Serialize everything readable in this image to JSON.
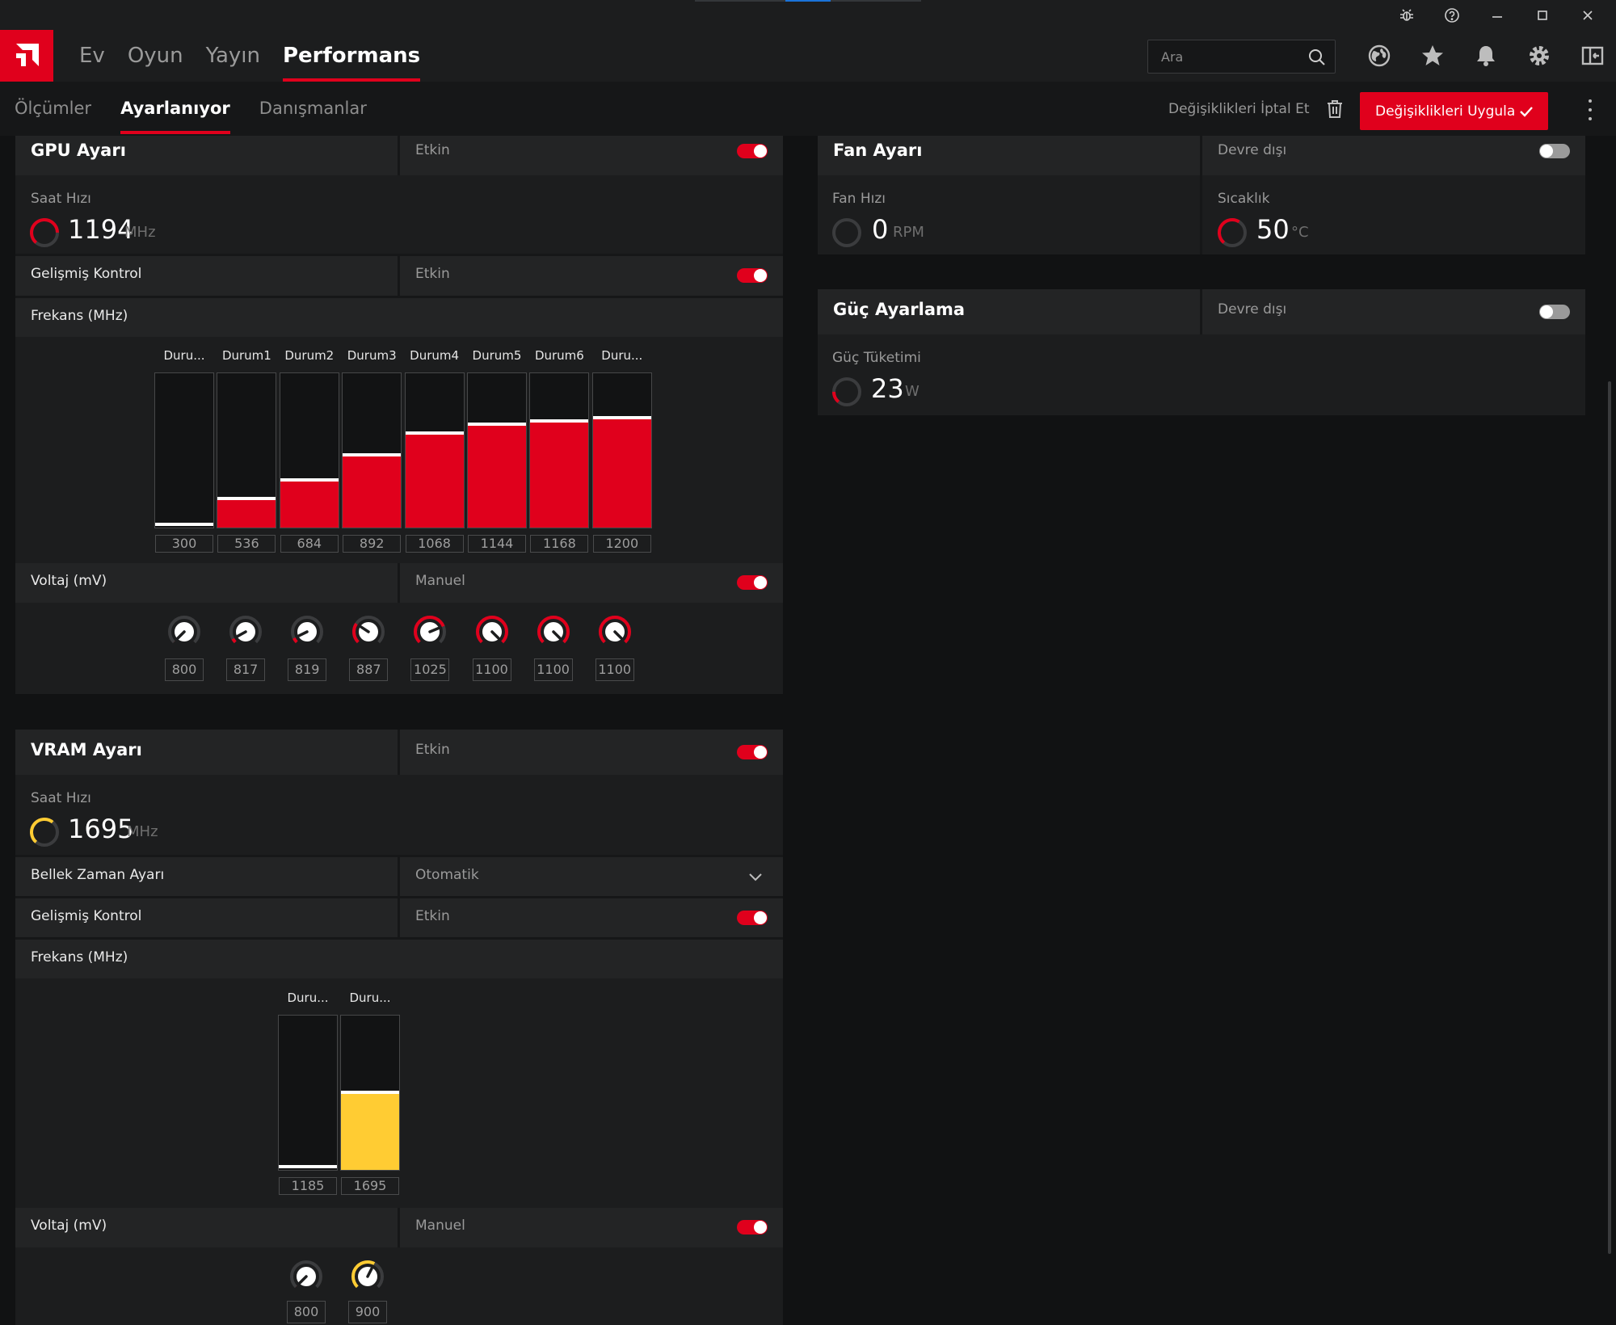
{
  "nav": {
    "tabs": [
      "Ev",
      "Oyun",
      "Yayın",
      "Performans"
    ],
    "active_tab": "Performans",
    "search_placeholder": "Ara"
  },
  "subnav": {
    "tabs": [
      "Ölçümler",
      "Ayarlanıyor",
      "Danışmanlar"
    ],
    "active_tab": "Ayarlanıyor",
    "discard_label": "Değişiklikleri İptal Et",
    "apply_label": "Değişiklikleri Uygula"
  },
  "colors": {
    "accent": "#e0001c",
    "vram_accent": "#ffcc33",
    "panel": "#1c1d1e",
    "background": "#111213"
  },
  "gpu": {
    "title": "GPU Ayarı",
    "status": "Etkin",
    "enabled": true,
    "clock_label": "Saat Hızı",
    "clock_value": "1194",
    "clock_unit": "MHz",
    "advanced_label": "Gelişmiş Kontrol",
    "advanced_status": "Etkin",
    "freq_label": "Frekans (MHz)",
    "states": [
      {
        "name": "Duru...",
        "freq": "300",
        "fill": 0.0
      },
      {
        "name": "Durum1",
        "freq": "536",
        "fill": 0.19
      },
      {
        "name": "Durum2",
        "freq": "684",
        "fill": 0.31
      },
      {
        "name": "Durum3",
        "freq": "892",
        "fill": 0.47
      },
      {
        "name": "Durum4",
        "freq": "1068",
        "fill": 0.61
      },
      {
        "name": "Durum5",
        "freq": "1144",
        "fill": 0.67
      },
      {
        "name": "Durum6",
        "freq": "1168",
        "fill": 0.69
      },
      {
        "name": "Duru...",
        "freq": "1200",
        "fill": 0.71
      }
    ],
    "voltage_label": "Voltaj (mV)",
    "voltage_mode": "Manuel",
    "voltages": [
      {
        "value": "800",
        "level": 0.0
      },
      {
        "value": "817",
        "level": 0.06
      },
      {
        "value": "819",
        "level": 0.07
      },
      {
        "value": "887",
        "level": 0.29
      },
      {
        "value": "1025",
        "level": 0.75
      },
      {
        "value": "1100",
        "level": 1.0
      },
      {
        "value": "1100",
        "level": 1.0
      },
      {
        "value": "1100",
        "level": 1.0
      }
    ]
  },
  "vram": {
    "title": "VRAM Ayarı",
    "status": "Etkin",
    "clock_label": "Saat Hızı",
    "clock_value": "1695",
    "clock_unit": "MHz",
    "timing_label": "Bellek Zaman Ayarı",
    "timing_value": "Otomatik",
    "advanced_label": "Gelişmiş Kontrol",
    "advanced_status": "Etkin",
    "freq_label": "Frekans (MHz)",
    "states": [
      {
        "name": "Duru...",
        "freq": "1185",
        "fill": 0.0
      },
      {
        "name": "Duru...",
        "freq": "1695",
        "fill": 0.5
      }
    ],
    "voltage_label": "Voltaj (mV)",
    "voltage_mode": "Manuel",
    "voltages": [
      {
        "value": "800",
        "level": 0.0
      },
      {
        "value": "900",
        "level": 0.6
      }
    ]
  },
  "fan": {
    "title": "Fan Ayarı",
    "status": "Devre dışı",
    "speed_label": "Fan Hızı",
    "speed_value": "0",
    "speed_unit": "RPM",
    "temp_label": "Sıcaklık",
    "temp_value": "50",
    "temp_unit": "°C"
  },
  "power": {
    "title": "Güç Ayarlama",
    "status": "Devre dışı",
    "usage_label": "Güç Tüketimi",
    "usage_value": "23",
    "usage_unit": "W"
  }
}
